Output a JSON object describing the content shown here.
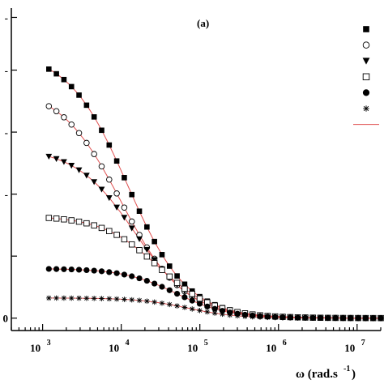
{
  "chart_data": {
    "type": "scatter",
    "title": "",
    "panel_label": "(a)",
    "xlabel": "ω (rad.s",
    "xlabel_sup": "-1",
    "xlabel_close": ")",
    "x_scale": "log",
    "xlim": [
      400,
      20000000
    ],
    "ylim": [
      -0.04,
      1.0
    ],
    "x_tick_labels": [
      {
        "value": 1000,
        "base": "10",
        "exp": "3"
      },
      {
        "value": 10000,
        "base": "10",
        "exp": "4"
      },
      {
        "value": 100000,
        "base": "10",
        "exp": "5"
      },
      {
        "value": 1000000,
        "base": "10",
        "exp": "6"
      },
      {
        "value": 10000000,
        "base": "10",
        "exp": "7"
      }
    ],
    "y_tick_labels": [
      {
        "value": 0.0,
        "label": "0"
      },
      {
        "value": 0.2,
        "label": ""
      },
      {
        "value": 0.4,
        "label": "-"
      },
      {
        "value": 0.6,
        "label": "-"
      },
      {
        "value": 0.8,
        "label": "-"
      },
      {
        "value": 0.97,
        "label": "-"
      }
    ],
    "legend_position": "right",
    "series": [
      {
        "marker": "filled-square",
        "color": "#000000",
        "plateau": 0.86,
        "omega_c": 12000,
        "n": 1.15,
        "has_fit": true
      },
      {
        "marker": "open-circle",
        "color": "#000000",
        "plateau": 0.75,
        "omega_c": 10000,
        "n": 1.1,
        "has_fit": true
      },
      {
        "marker": "filled-down-triangle",
        "color": "#000000",
        "plateau": 0.55,
        "omega_c": 15000,
        "n": 1.15,
        "has_fit": true
      },
      {
        "marker": "open-square",
        "color": "#000000",
        "plateau": 0.33,
        "omega_c": 30000,
        "n": 1.2,
        "has_fit": true
      },
      {
        "marker": "filled-circle",
        "color": "#000000",
        "plateau": 0.16,
        "omega_c": 50000,
        "n": 1.3,
        "has_fit": true
      },
      {
        "marker": "asterisk",
        "color": "#000000",
        "plateau": 0.065,
        "omega_c": 70000,
        "n": 1.4,
        "has_fit": true
      }
    ],
    "fit_line_color": "#e05050",
    "legend_entries": [
      {
        "marker": "filled-square"
      },
      {
        "marker": "open-circle"
      },
      {
        "marker": "filled-down-triangle"
      },
      {
        "marker": "open-square"
      },
      {
        "marker": "filled-circle"
      },
      {
        "marker": "asterisk"
      },
      {
        "marker": "red-line"
      }
    ]
  }
}
